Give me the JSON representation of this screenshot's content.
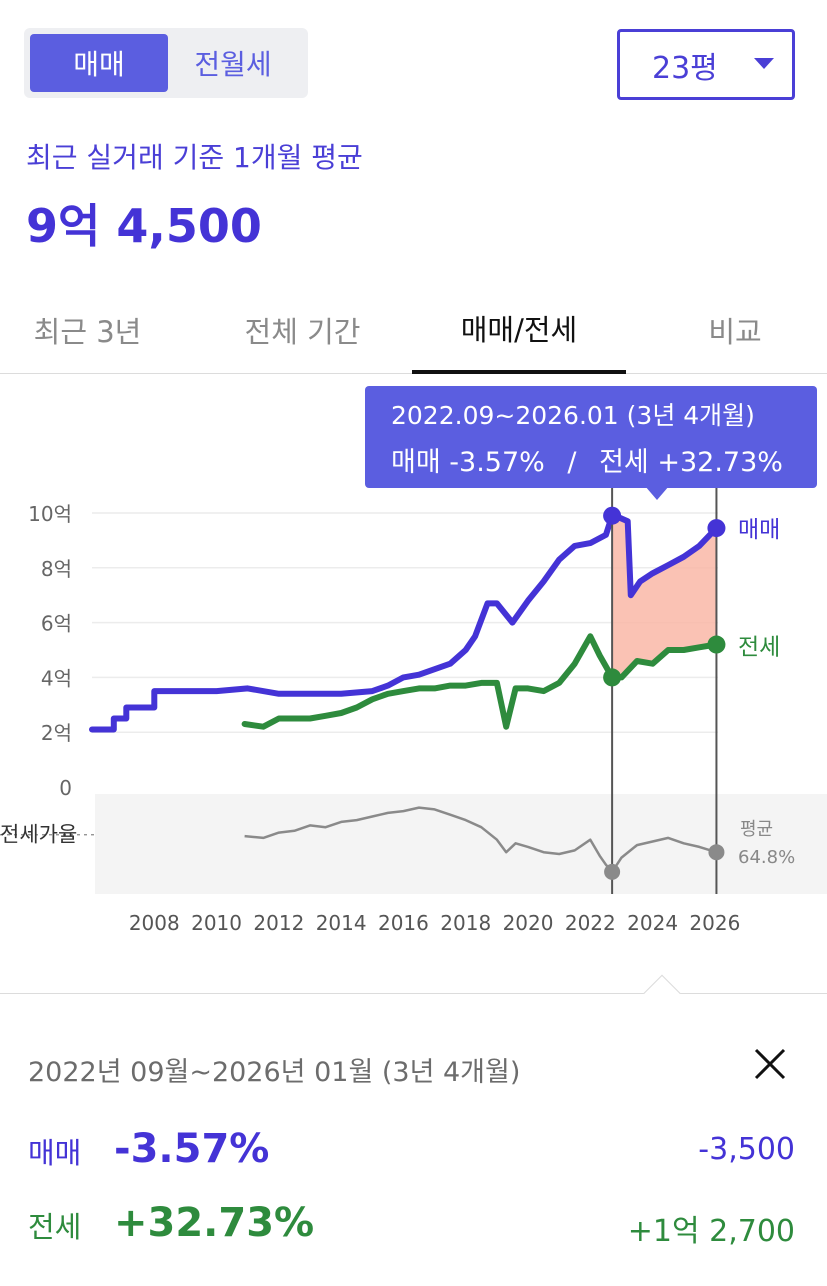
{
  "deal_toggle": {
    "sale_label": "매매",
    "jeonse_label": "전월세"
  },
  "size_select": {
    "value": "23평"
  },
  "summary": {
    "subtitle": "최근 실거래 기준 1개월 평균",
    "price": "9억 4,500"
  },
  "tabs": [
    {
      "label": "최근 3년",
      "active": false
    },
    {
      "label": "전체 기간",
      "active": false
    },
    {
      "label": "매매/전세",
      "active": true
    },
    {
      "label": "비교",
      "active": false
    }
  ],
  "tooltip": {
    "period": "2022.09~2026.01 (3년 4개월)",
    "sale_label": "매매",
    "sale_change": "-3.57%",
    "separator": "/",
    "jeonse_label": "전세",
    "jeonse_change": "+32.73%"
  },
  "colors": {
    "sale": "#4433d6",
    "jeonse": "#2e8b3d",
    "ratio": "#8a8a8a",
    "highlight": "#f9b7a7",
    "accent": "#5b5ee0"
  },
  "chart_data": {
    "type": "line",
    "y_ticks": [
      "10억",
      "8억",
      "6억",
      "4억",
      "2억",
      "0"
    ],
    "ylim": [
      0,
      10
    ],
    "x_ticks": [
      "2008",
      "2010",
      "2012",
      "2014",
      "2016",
      "2018",
      "2020",
      "2022",
      "2024",
      "2026"
    ],
    "xlim": [
      2006.0,
      2026.1
    ],
    "selection": {
      "start": 2022.7,
      "end": 2026.05
    },
    "ratio_label": "전세가율",
    "ratio_avg_label": "평균",
    "ratio_avg_value": "64.8%",
    "ratio_avg": 64.8,
    "series": [
      {
        "name": "매매",
        "x": [
          2006.0,
          2006.7,
          2006.7,
          2007.1,
          2007.1,
          2008.0,
          2008.0,
          2009.0,
          2010.0,
          2011.0,
          2012.0,
          2013.0,
          2014.0,
          2015.0,
          2015.5,
          2016.0,
          2016.5,
          2017.0,
          2017.5,
          2018.0,
          2018.3,
          2018.7,
          2019.0,
          2019.5,
          2020.0,
          2020.5,
          2021.0,
          2021.5,
          2022.0,
          2022.5,
          2022.7,
          2022.9,
          2023.2,
          2023.3,
          2023.6,
          2024.0,
          2024.5,
          2025.0,
          2025.5,
          2026.05
        ],
        "values": [
          2.1,
          2.1,
          2.5,
          2.5,
          2.9,
          2.9,
          3.5,
          3.5,
          3.5,
          3.6,
          3.4,
          3.4,
          3.4,
          3.5,
          3.7,
          4.0,
          4.1,
          4.3,
          4.5,
          5.0,
          5.5,
          6.7,
          6.7,
          6.0,
          6.8,
          7.5,
          8.3,
          8.8,
          8.9,
          9.2,
          9.9,
          9.85,
          9.7,
          7.0,
          7.5,
          7.8,
          8.1,
          8.4,
          8.8,
          9.45
        ]
      },
      {
        "name": "전세",
        "x": [
          2010.9,
          2011.5,
          2012.0,
          2012.5,
          2013.0,
          2013.5,
          2014.0,
          2014.5,
          2015.0,
          2015.5,
          2016.0,
          2016.5,
          2017.0,
          2017.5,
          2018.0,
          2018.5,
          2019.0,
          2019.3,
          2019.6,
          2020.0,
          2020.5,
          2021.0,
          2021.5,
          2022.0,
          2022.3,
          2022.5,
          2022.7,
          2023.0,
          2023.5,
          2024.0,
          2024.5,
          2025.0,
          2025.5,
          2026.05
        ],
        "values": [
          2.3,
          2.2,
          2.5,
          2.5,
          2.5,
          2.6,
          2.7,
          2.9,
          3.2,
          3.4,
          3.5,
          3.6,
          3.6,
          3.7,
          3.7,
          3.8,
          3.8,
          2.2,
          3.6,
          3.6,
          3.5,
          3.8,
          4.5,
          5.5,
          4.8,
          4.4,
          4.0,
          4.0,
          4.6,
          4.5,
          5.0,
          5.0,
          5.1,
          5.2
        ]
      },
      {
        "name": "전세가율",
        "x": [
          2010.9,
          2011.5,
          2012.0,
          2012.5,
          2013.0,
          2013.5,
          2014.0,
          2014.5,
          2015.0,
          2015.5,
          2016.0,
          2016.5,
          2017.0,
          2017.5,
          2018.0,
          2018.5,
          2019.0,
          2019.3,
          2019.6,
          2020.0,
          2020.5,
          2021.0,
          2021.5,
          2022.0,
          2022.3,
          2022.5,
          2022.7,
          2023.0,
          2023.5,
          2024.0,
          2024.5,
          2025.0,
          2025.5,
          2026.05
        ],
        "values": [
          64.0,
          63.0,
          66.0,
          67.0,
          70.0,
          69.0,
          72.0,
          73.0,
          75.0,
          77.0,
          78.0,
          80.0,
          79.0,
          76.0,
          73.0,
          69.0,
          62.0,
          55.0,
          60.0,
          58.0,
          55.0,
          54.0,
          56.0,
          62.0,
          53.0,
          48.0,
          44.0,
          52.0,
          59.0,
          61.0,
          63.0,
          60.0,
          58.0,
          55.0
        ]
      }
    ]
  },
  "detail": {
    "period": "2022년 09월~2026년 01월 (3년 4개월)",
    "sale": {
      "label": "매매",
      "pct": "-3.57%",
      "amount": "-3,500"
    },
    "jeonse": {
      "label": "전세",
      "pct": "+32.73%",
      "amount": "+1억 2,700"
    }
  }
}
